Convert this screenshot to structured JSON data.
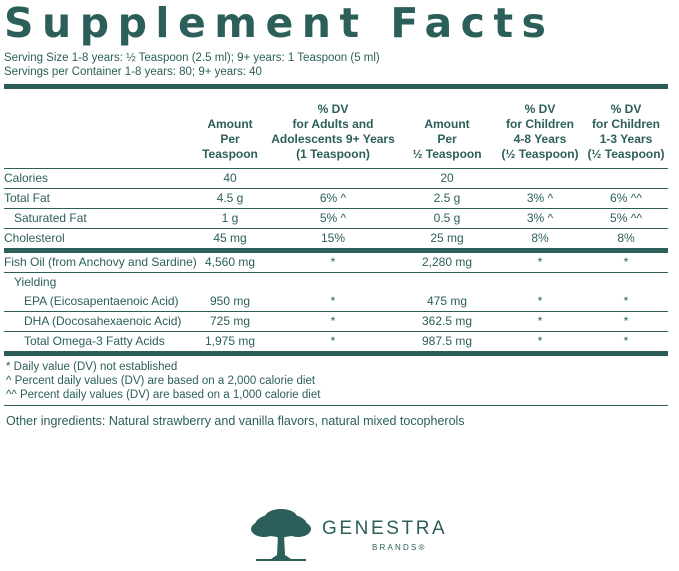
{
  "title": "Supplement Facts",
  "serving_size": "Serving Size 1-8 years: ½ Teaspoon (2.5 ml); 9+ years: 1 Teaspoon (5 ml)",
  "servings_per_container": "Servings per Container 1-8 years: 80; 9+ years: 40",
  "headers": [
    "",
    "Amount\nPer\nTeaspoon",
    "% DV\nfor Adults and\nAdolescents 9+ Years\n(1 Teaspoon)",
    "Amount\nPer\n½ Teaspoon",
    "% DV\nfor Children\n4-8 Years\n(½ Teaspoon)",
    "% DV\nfor Children\n1-3 Years\n(½ Teaspoon)"
  ],
  "rows": [
    [
      "Calories",
      "40",
      "",
      "20",
      "",
      ""
    ],
    [
      "Total Fat",
      "4.5 g",
      "6% ^",
      "2.5 g",
      "3% ^",
      "6% ^^"
    ],
    [
      "Saturated Fat",
      "1 g",
      "5% ^",
      "0.5 g",
      "3% ^",
      "5% ^^"
    ],
    [
      "Cholesterol",
      "45 mg",
      "15%",
      "25 mg",
      "8%",
      "8%"
    ],
    [
      "Fish Oil (from Anchovy and Sardine)",
      "4,560 mg",
      "*",
      "2,280 mg",
      "*",
      "*"
    ],
    [
      "Yielding",
      "",
      "",
      "",
      "",
      ""
    ],
    [
      "EPA (Eicosapentaenoic Acid)",
      "950 mg",
      "*",
      "475 mg",
      "*",
      "*"
    ],
    [
      "DHA (Docosahexaenoic Acid)",
      "725 mg",
      "*",
      "362.5 mg",
      "*",
      "*"
    ],
    [
      "Total Omega-3 Fatty Acids",
      "1,975 mg",
      "*",
      "987.5 mg",
      "*",
      "*"
    ]
  ],
  "footnotes": [
    "* Daily value (DV) not established",
    "^ Percent daily values (DV) are based on a 2,000 calorie diet",
    "^^ Percent daily values (DV) are based on a 1,000 calorie diet"
  ],
  "other_ingredients": "Other ingredients: Natural strawberry and vanilla flavors, natural mixed tocopherols",
  "brand": {
    "name": "GENESTRA",
    "sub": "BRANDS®",
    "logo_icon": "tree-icon"
  },
  "colors": {
    "text": "#2c5f5a",
    "background": "#ffffff"
  }
}
